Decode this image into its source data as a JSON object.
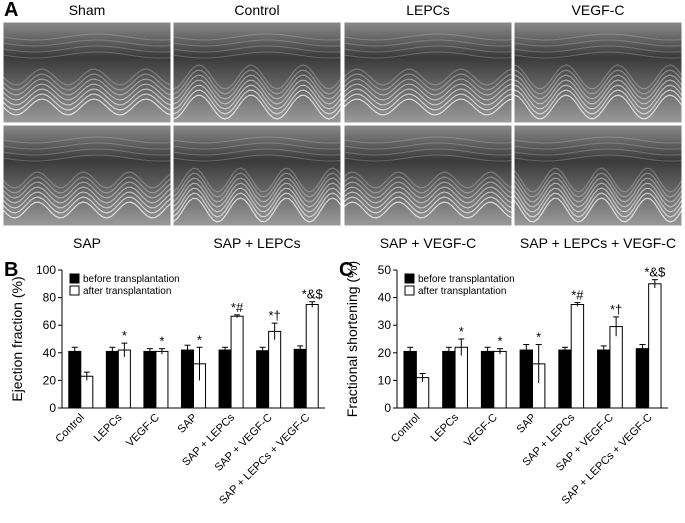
{
  "panel_a": {
    "label": "A",
    "top_labels": [
      "Sham",
      "Control",
      "LEPCs",
      "VEGF-C"
    ],
    "bottom_labels": [
      "SAP",
      "SAP + LEPCs",
      "SAP + VEGF-C",
      "SAP + LEPCs + VEGF-C"
    ]
  },
  "chart_data": [
    {
      "type": "bar",
      "panel_label": "B",
      "y_label": "Ejection fraction (%)",
      "categories": [
        "Control",
        "LEPCs",
        "VEGF-C",
        "SAP",
        "SAP + LEPCs",
        "SAP + VEGF-C",
        "SAP + LEPCs + VEGF-C"
      ],
      "series": [
        {
          "name": "before transplantation",
          "color": "#000000",
          "values": [
            41,
            41,
            41,
            42,
            42,
            41.5,
            42.5
          ],
          "errors": [
            3,
            3,
            2,
            3.5,
            2,
            2.5,
            2.5
          ]
        },
        {
          "name": "after transplantation",
          "color": "#ffffff",
          "values": [
            23,
            42,
            41,
            32,
            66.5,
            55.5,
            75
          ],
          "errors": [
            3,
            5,
            2,
            12,
            1,
            6,
            2
          ],
          "annotations": [
            null,
            "*",
            "*",
            "*",
            "*#",
            "*†",
            "*&$"
          ]
        }
      ],
      "ylim": [
        0,
        100
      ],
      "yticks": [
        0,
        20,
        40,
        60,
        80,
        100
      ],
      "legend": "upper left"
    },
    {
      "type": "bar",
      "panel_label": "C",
      "y_label": "Fractional shortening (%)",
      "categories": [
        "Control",
        "LEPCs",
        "VEGF-C",
        "SAP",
        "SAP + LEPCs",
        "SAP + VEGF-C",
        "SAP + LEPCs + VEGF-C"
      ],
      "series": [
        {
          "name": "before transplantation",
          "color": "#000000",
          "values": [
            20.5,
            20.5,
            20.5,
            21,
            21,
            21,
            21.5
          ],
          "errors": [
            1.5,
            1.5,
            1.5,
            2,
            1,
            1.5,
            1.5
          ]
        },
        {
          "name": "after transplantation",
          "color": "#ffffff",
          "values": [
            11,
            22,
            20.5,
            16,
            37.5,
            29.5,
            45
          ],
          "errors": [
            1.5,
            3,
            1,
            7,
            0.7,
            3.5,
            1.5
          ],
          "annotations": [
            null,
            "*",
            "*",
            "*",
            "*#",
            "*†",
            "*&$"
          ]
        }
      ],
      "ylim": [
        0,
        50
      ],
      "yticks": [
        0,
        10,
        20,
        30,
        40,
        50
      ],
      "legend": "upper left"
    }
  ]
}
